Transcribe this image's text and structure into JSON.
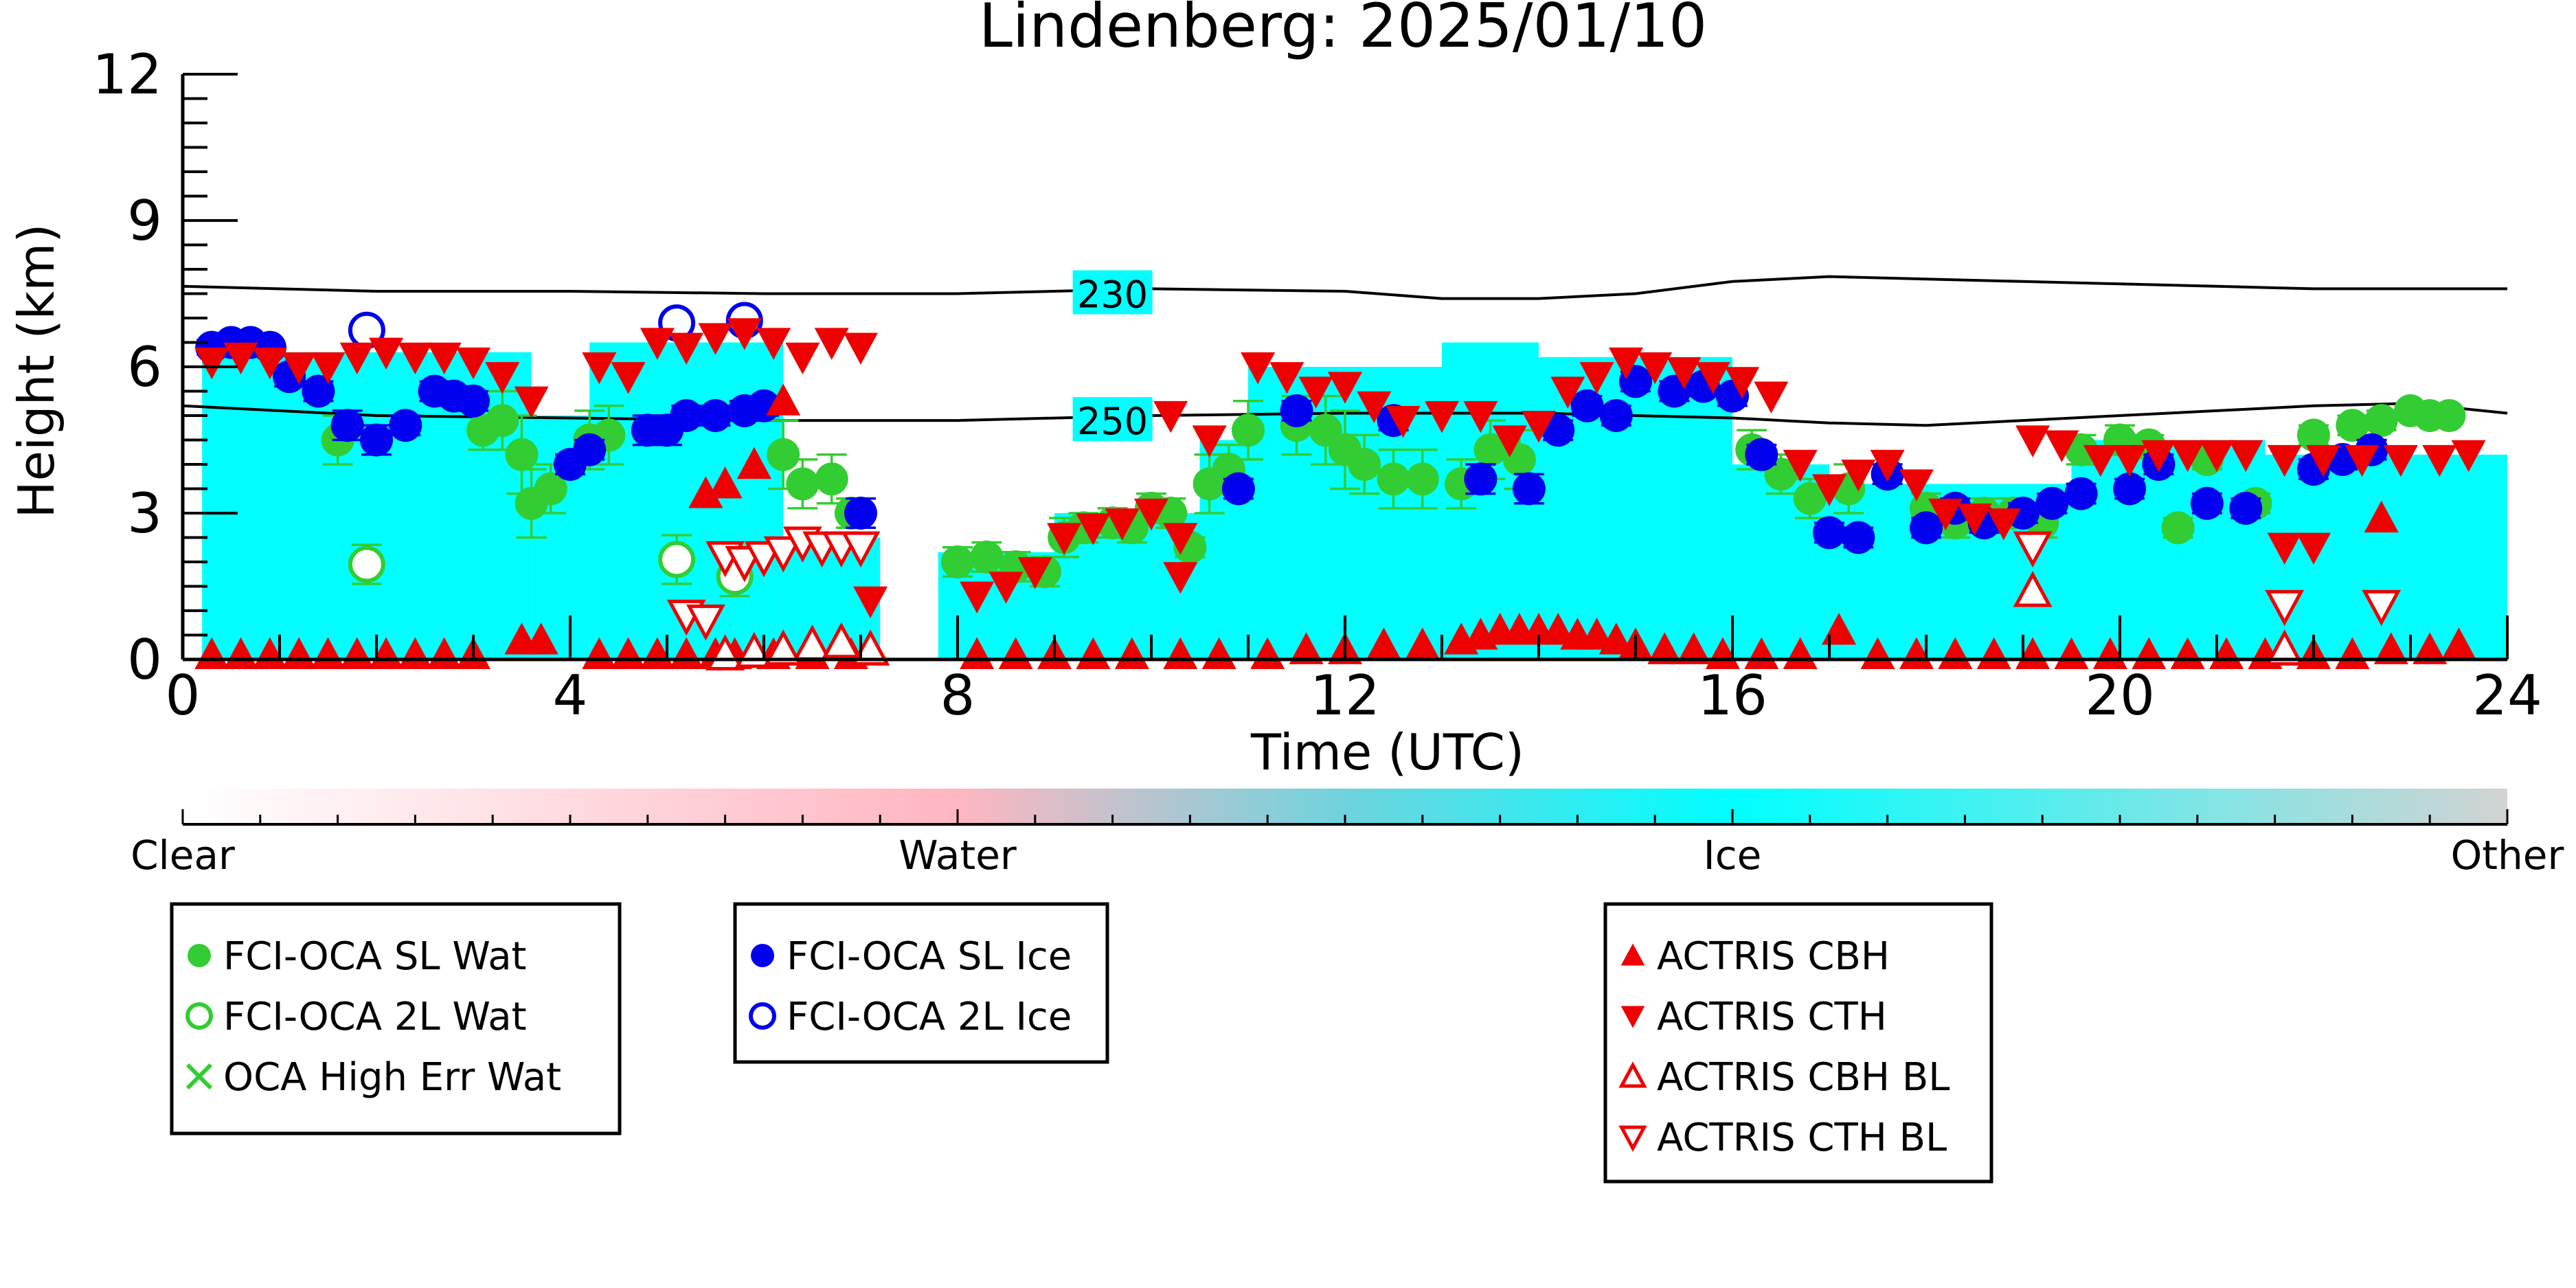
{
  "chart_data": {
    "type": "scatter",
    "title": "Lindenberg: 2025/01/10",
    "xlabel": "Time (UTC)",
    "ylabel": "Height (km)",
    "xlim": [
      0,
      24
    ],
    "ylim": [
      0,
      12
    ],
    "x_ticks": [
      "0",
      "4",
      "8",
      "12",
      "16",
      "20",
      "24"
    ],
    "y_ticks": [
      "0",
      "3",
      "6",
      "9",
      "12"
    ],
    "contours": [
      {
        "label": "230",
        "x": [
          0,
          2,
          4,
          6,
          8,
          10,
          12,
          13,
          14,
          15,
          16,
          17,
          18,
          19,
          20,
          21,
          22,
          23,
          24
        ],
        "y": [
          7.65,
          7.55,
          7.55,
          7.5,
          7.5,
          7.6,
          7.55,
          7.4,
          7.4,
          7.5,
          7.75,
          7.85,
          7.8,
          7.75,
          7.7,
          7.65,
          7.6,
          7.6,
          7.6
        ]
      },
      {
        "label": "250",
        "x": [
          0,
          2,
          4,
          6,
          8,
          10,
          12,
          14,
          15,
          16,
          17,
          18,
          19,
          20,
          21,
          22,
          23,
          24
        ],
        "y": [
          5.2,
          5.0,
          4.95,
          4.9,
          4.9,
          5.0,
          5.05,
          5.05,
          5.0,
          4.95,
          4.85,
          4.8,
          4.9,
          5.0,
          5.1,
          5.2,
          5.25,
          5.05
        ]
      }
    ],
    "cloud_phase_scale": {
      "labels": [
        "Clear",
        "Water",
        "Ice",
        "Other"
      ],
      "colors": [
        "#ffffff",
        "#ffb6c1",
        "#00ffff",
        "#d3d3d3"
      ]
    },
    "phase_curtain": [
      {
        "x0": 0.2,
        "x1": 3.6,
        "top": 6.3,
        "phase": "ice"
      },
      {
        "x0": 3.6,
        "x1": 4.2,
        "top": 5.0,
        "phase": "ice"
      },
      {
        "x0": 4.2,
        "x1": 6.2,
        "top": 6.5,
        "phase": "ice"
      },
      {
        "x0": 6.2,
        "x1": 7.2,
        "top": 2.5,
        "phase": "ice"
      },
      {
        "x0": 7.8,
        "x1": 9.0,
        "top": 2.2,
        "phase": "ice"
      },
      {
        "x0": 9.0,
        "x1": 10.5,
        "top": 3.0,
        "phase": "ice"
      },
      {
        "x0": 10.5,
        "x1": 11.0,
        "top": 4.5,
        "phase": "ice"
      },
      {
        "x0": 11.0,
        "x1": 13.0,
        "top": 6.0,
        "phase": "ice"
      },
      {
        "x0": 13.0,
        "x1": 14.0,
        "top": 6.5,
        "phase": "ice"
      },
      {
        "x0": 14.0,
        "x1": 16.0,
        "top": 6.2,
        "phase": "ice"
      },
      {
        "x0": 16.0,
        "x1": 17.0,
        "top": 4.0,
        "phase": "ice"
      },
      {
        "x0": 17.0,
        "x1": 19.5,
        "top": 3.6,
        "phase": "ice"
      },
      {
        "x0": 19.5,
        "x1": 21.5,
        "top": 4.5,
        "phase": "ice"
      },
      {
        "x0": 21.5,
        "x1": 24.0,
        "top": 4.2,
        "phase": "ice"
      }
    ],
    "legend": [
      {
        "name": "FCI-OCA SL Wat",
        "color": "#32cd32",
        "marker": "filled-circle"
      },
      {
        "name": "FCI-OCA 2L Wat",
        "color": "#32cd32",
        "marker": "open-circle"
      },
      {
        "name": "OCA High Err Wat",
        "color": "#32cd32",
        "marker": "x"
      },
      {
        "name": "FCI-OCA SL Ice",
        "color": "#0000ee",
        "marker": "filled-circle"
      },
      {
        "name": "FCI-OCA 2L Ice",
        "color": "#0000ee",
        "marker": "open-circle"
      },
      {
        "name": "ACTRIS CBH",
        "color": "#ee0000",
        "marker": "triangle-up"
      },
      {
        "name": "ACTRIS CTH",
        "color": "#ee0000",
        "marker": "triangle-down"
      },
      {
        "name": "ACTRIS CBH BL",
        "color": "#ee0000",
        "marker": "open-triangle-up"
      },
      {
        "name": "ACTRIS CTH BL",
        "color": "#ee0000",
        "marker": "open-triangle-down"
      }
    ],
    "series": [
      {
        "name": "FCI-OCA SL Wat",
        "x": [
          1.6,
          3.1,
          3.3,
          3.5,
          3.6,
          3.8,
          4.2,
          4.4,
          6.2,
          6.4,
          6.7,
          6.9,
          8.0,
          8.3,
          8.6,
          8.9,
          9.1,
          9.3,
          9.6,
          9.8,
          10.0,
          10.2,
          10.4,
          10.6,
          10.8,
          11.0,
          11.5,
          11.8,
          12.0,
          12.2,
          12.5,
          12.8,
          13.2,
          13.5,
          13.8,
          16.2,
          16.5,
          16.8,
          17.2,
          18.0,
          18.3,
          18.6,
          18.9,
          19.2,
          19.6,
          20.0,
          20.3,
          20.6,
          20.9,
          21.4,
          22.0,
          22.4,
          22.7,
          23.0,
          23.2,
          23.4
        ],
        "y": [
          4.5,
          4.7,
          4.9,
          4.2,
          3.2,
          3.5,
          4.5,
          4.6,
          4.2,
          3.6,
          3.7,
          3.0,
          2.0,
          2.1,
          1.9,
          1.8,
          2.5,
          2.7,
          2.8,
          2.7,
          3.1,
          3.0,
          2.3,
          3.6,
          3.9,
          4.7,
          4.8,
          4.7,
          4.3,
          4.0,
          3.7,
          3.7,
          3.6,
          4.3,
          4.1,
          4.3,
          3.8,
          3.3,
          3.5,
          3.1,
          2.8,
          3.0,
          3.0,
          2.8,
          4.3,
          4.5,
          4.4,
          2.7,
          4.1,
          3.2,
          4.6,
          4.8,
          4.9,
          5.1,
          5.0,
          5.0
        ],
        "yerr": [
          0.5,
          0.4,
          0.6,
          0.8,
          0.7,
          0.5,
          0.6,
          0.6,
          0.7,
          0.5,
          0.5,
          0.3,
          0.3,
          0.3,
          0.3,
          0.3,
          0.4,
          0.3,
          0.3,
          0.3,
          0.3,
          0.3,
          0.2,
          0.6,
          0.5,
          0.6,
          0.6,
          0.7,
          0.8,
          0.6,
          0.6,
          0.6,
          0.5,
          0.6,
          0.6,
          0.4,
          0.4,
          0.4,
          0.5,
          0.3,
          0.3,
          0.3,
          0.3,
          0.3,
          0.3,
          0.3,
          0.2,
          0.2,
          0.2,
          0.2,
          0.2,
          0.2,
          0.2,
          0.1,
          0.1,
          0.1
        ]
      },
      {
        "name": "FCI-OCA 2L Wat",
        "x": [
          1.9,
          5.1,
          5.7
        ],
        "y": [
          1.95,
          2.05,
          1.7
        ],
        "yerr": [
          0.4,
          0.5,
          0.4
        ]
      },
      {
        "name": "FCI-OCA SL Ice",
        "x": [
          0.3,
          0.5,
          0.7,
          0.9,
          1.1,
          1.4,
          1.7,
          2.0,
          2.3,
          2.6,
          2.8,
          3.0,
          4.0,
          4.2,
          4.8,
          5.0,
          5.2,
          5.5,
          5.8,
          6.0,
          7.0,
          10.9,
          11.5,
          12.5,
          13.4,
          13.9,
          14.2,
          14.5,
          14.8,
          15.0,
          15.4,
          15.7,
          16.0,
          16.3,
          17.0,
          17.3,
          17.6,
          18.0,
          18.3,
          18.6,
          19.0,
          19.3,
          19.6,
          20.1,
          20.4,
          20.9,
          21.3,
          22.0,
          22.3,
          22.6
        ],
        "y": [
          6.4,
          6.5,
          6.5,
          6.4,
          5.8,
          5.5,
          4.8,
          4.5,
          4.8,
          5.5,
          5.4,
          5.3,
          4.0,
          4.3,
          4.7,
          4.7,
          5.0,
          5.0,
          5.1,
          5.2,
          3.0,
          3.5,
          5.1,
          4.9,
          3.7,
          3.5,
          4.7,
          5.2,
          5.0,
          5.7,
          5.5,
          5.6,
          5.4,
          4.2,
          2.6,
          2.5,
          3.8,
          2.7,
          3.1,
          2.8,
          3.0,
          3.2,
          3.4,
          3.5,
          4.0,
          3.2,
          3.1,
          3.9,
          4.1,
          4.3
        ],
        "yerr": [
          0.15,
          0.15,
          0.1,
          0.1,
          0.2,
          0.2,
          0.3,
          0.3,
          0.2,
          0.2,
          0.2,
          0.2,
          0.2,
          0.2,
          0.3,
          0.3,
          0.2,
          0.2,
          0.2,
          0.2,
          0.3,
          0.2,
          0.2,
          0.2,
          0.3,
          0.3,
          0.2,
          0.2,
          0.2,
          0.2,
          0.2,
          0.2,
          0.2,
          0.2,
          0.2,
          0.2,
          0.2,
          0.2,
          0.2,
          0.2,
          0.2,
          0.2,
          0.2,
          0.2,
          0.2,
          0.2,
          0.2,
          0.2,
          0.2,
          0.2
        ]
      },
      {
        "name": "FCI-OCA 2L Ice",
        "x": [
          1.9,
          5.1,
          5.8
        ],
        "y": [
          6.75,
          6.9,
          6.95
        ],
        "yerr": [
          0.2,
          0.2,
          0.2
        ]
      },
      {
        "name": "ACTRIS CBH",
        "x": [
          0.3,
          0.6,
          0.9,
          1.2,
          1.5,
          1.8,
          2.1,
          2.4,
          2.7,
          3.0,
          3.5,
          3.7,
          4.3,
          4.6,
          4.9,
          5.2,
          5.5,
          5.7,
          6.1,
          6.5,
          6.9,
          8.2,
          8.6,
          9.0,
          9.4,
          9.8,
          10.3,
          10.7,
          11.2,
          11.6,
          12.0,
          12.4,
          12.8,
          13.2,
          13.4,
          13.6,
          13.8,
          14.0,
          14.2,
          14.4,
          14.6,
          14.8,
          15.0,
          15.3,
          15.6,
          15.9,
          16.3,
          16.7,
          17.1,
          17.5,
          17.9,
          18.3,
          18.7,
          19.1,
          19.5,
          19.9,
          20.3,
          20.7,
          21.1,
          21.5,
          22.0,
          22.4,
          22.8,
          23.2,
          23.5,
          5.4,
          5.6,
          5.9,
          6.2,
          22.7
        ],
        "y": [
          0.1,
          0.1,
          0.1,
          0.1,
          0.1,
          0.1,
          0.1,
          0.1,
          0.1,
          0.1,
          0.4,
          0.4,
          0.1,
          0.1,
          0.1,
          0.1,
          0.1,
          0.1,
          0.1,
          0.1,
          0.1,
          0.1,
          0.1,
          0.1,
          0.1,
          0.1,
          0.1,
          0.1,
          0.1,
          0.2,
          0.2,
          0.3,
          0.3,
          0.4,
          0.5,
          0.6,
          0.6,
          0.6,
          0.6,
          0.5,
          0.5,
          0.4,
          0.3,
          0.2,
          0.2,
          0.1,
          0.1,
          0.1,
          0.6,
          0.1,
          0.1,
          0.1,
          0.1,
          0.1,
          0.1,
          0.1,
          0.1,
          0.1,
          0.1,
          0.1,
          0.1,
          0.1,
          0.2,
          0.2,
          0.3,
          3.4,
          3.6,
          4.0,
          5.3,
          2.9
        ]
      },
      {
        "name": "ACTRIS CTH",
        "x": [
          0.3,
          0.6,
          0.9,
          1.2,
          1.5,
          1.8,
          2.1,
          2.4,
          2.7,
          3.0,
          3.3,
          3.6,
          4.3,
          4.6,
          4.9,
          5.2,
          5.5,
          5.8,
          6.1,
          6.4,
          6.7,
          7.0,
          7.1,
          8.2,
          8.5,
          8.8,
          9.1,
          9.4,
          9.7,
          10.0,
          10.3,
          10.6,
          11.1,
          11.4,
          11.7,
          12.0,
          12.3,
          12.6,
          13.0,
          13.4,
          13.7,
          14.0,
          14.3,
          14.6,
          14.9,
          15.2,
          15.5,
          15.8,
          16.1,
          16.4,
          16.7,
          17.0,
          17.3,
          17.6,
          17.9,
          18.2,
          18.5,
          18.8,
          19.1,
          19.4,
          19.8,
          20.1,
          20.4,
          20.7,
          21.0,
          21.3,
          21.7,
          22.1,
          22.5,
          22.9,
          23.3,
          23.6,
          10.2,
          10.3,
          21.7,
          22.0
        ],
        "y": [
          6.1,
          6.2,
          6.1,
          6.0,
          6.0,
          6.2,
          6.3,
          6.2,
          6.2,
          6.1,
          5.8,
          5.3,
          6.0,
          5.8,
          6.5,
          6.4,
          6.6,
          6.7,
          6.5,
          6.2,
          6.5,
          6.4,
          1.2,
          1.3,
          1.5,
          1.8,
          2.5,
          2.7,
          2.8,
          3.0,
          2.5,
          4.5,
          6.0,
          5.8,
          5.5,
          5.6,
          5.2,
          4.9,
          5.0,
          5.0,
          4.5,
          4.8,
          5.5,
          5.8,
          6.1,
          6.0,
          5.9,
          5.8,
          5.7,
          5.4,
          4.0,
          3.5,
          3.8,
          4.0,
          3.6,
          3.0,
          2.9,
          2.8,
          4.5,
          4.4,
          4.1,
          4.1,
          4.2,
          4.2,
          4.2,
          4.2,
          4.1,
          4.1,
          4.1,
          4.1,
          4.1,
          4.2,
          5.0,
          1.7,
          2.3,
          2.3
        ]
      },
      {
        "name": "ACTRIS CBH BL",
        "x": [
          5.6,
          5.9,
          6.2,
          6.5,
          6.8,
          7.1,
          19.1,
          21.7
        ],
        "y": [
          0.1,
          0.15,
          0.2,
          0.3,
          0.35,
          0.2,
          1.4,
          0.2
        ]
      },
      {
        "name": "ACTRIS CTH BL",
        "x": [
          5.2,
          5.4,
          5.6,
          5.8,
          6.0,
          6.2,
          6.4,
          6.6,
          6.8,
          7.0,
          19.1,
          21.7,
          22.7
        ],
        "y": [
          0.9,
          0.8,
          2.1,
          2.0,
          2.1,
          2.2,
          2.4,
          2.3,
          2.3,
          2.3,
          2.3,
          1.1,
          1.1
        ]
      }
    ]
  }
}
